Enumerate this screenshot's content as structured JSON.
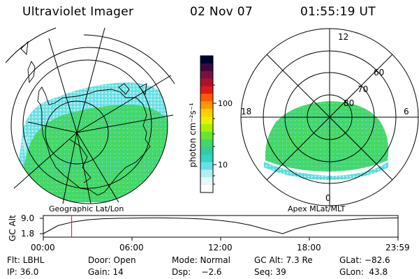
{
  "header": {
    "instrument": "Ultraviolet Imager",
    "date": "02 Nov 07",
    "time": "01:55:19 UT"
  },
  "left_panel": {
    "caption": "Geographic Lat/Lon"
  },
  "right_panel": {
    "caption": "Apex MLat/MLT",
    "mlt_labels": {
      "top": "12",
      "left": "18",
      "right": "6",
      "bottom": "0"
    },
    "mlat_labels": [
      "60",
      "70",
      "80"
    ]
  },
  "colorbar": {
    "unit_label": "photon cm⁻²s⁻¹",
    "ticks": [
      "100",
      "10"
    ],
    "colors": [
      "#000033",
      "#3a0a3e",
      "#7a1040",
      "#b0102a",
      "#e01818",
      "#ff5a00",
      "#ff9800",
      "#ffd000",
      "#e8f000",
      "#a8f000",
      "#66e632",
      "#44d66a",
      "#33cc9a",
      "#33d6c2",
      "#66e0e6",
      "#b0eef4",
      "#e6f8fa",
      "#ffffff"
    ]
  },
  "altitude_plot": {
    "ylabel": "GC Alt",
    "yticks": [
      "9.0",
      "1.8"
    ],
    "xticks": [
      "00:00",
      "06:00",
      "12:00",
      "18:00",
      "23:59"
    ],
    "curve": [
      [
        0,
        1.8
      ],
      [
        1,
        5.6
      ],
      [
        2,
        7.3
      ],
      [
        3,
        8.3
      ],
      [
        4,
        8.8
      ],
      [
        5,
        9.0
      ],
      [
        6,
        9.1
      ],
      [
        7,
        9.2
      ],
      [
        8,
        9.2
      ],
      [
        9,
        9.1
      ],
      [
        10,
        8.9
      ],
      [
        11,
        8.6
      ],
      [
        12,
        8.0
      ],
      [
        13,
        7.1
      ],
      [
        14,
        5.8
      ],
      [
        15,
        3.9
      ],
      [
        16.2,
        1.8
      ],
      [
        17,
        3.9
      ],
      [
        18,
        5.8
      ],
      [
        19,
        7.0
      ],
      [
        20,
        7.9
      ],
      [
        21,
        8.5
      ],
      [
        22,
        8.9
      ],
      [
        23,
        9.1
      ],
      [
        23.98,
        9.2
      ]
    ],
    "marker_hour": 1.92,
    "marker_color": "#ff0000"
  },
  "info": {
    "flt": "Flt: LBHL",
    "door": "Door: Open",
    "mode": "Mode: Normal",
    "gcalt": "GC Alt: 7.3 Re",
    "glat": "GLat: −82.6",
    "ip": "IP: 36.0",
    "gain": "Gain: 14",
    "dsp": "Dsp:    −2.6",
    "seq": "Seq: 39",
    "glon": "GLon:  43.8"
  },
  "colors": {
    "aurora_green": "#44d66a",
    "aurora_cyan": "#33d6c2",
    "aurora_light": "#b0eef4"
  }
}
